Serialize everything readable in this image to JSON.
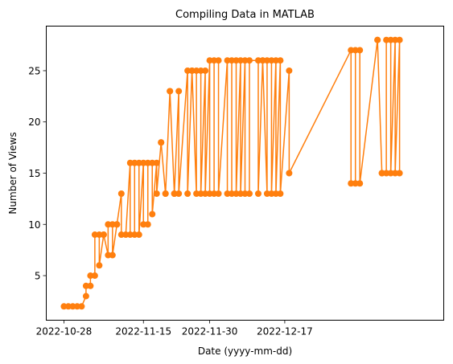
{
  "chart_data": {
    "type": "line",
    "title": "Compiling Data in MATLAB",
    "xlabel": "Date (yyyy-mm-dd)",
    "ylabel": "Number of Views",
    "xlim": [
      "2022-10-24",
      "2023-01-22"
    ],
    "ylim": [
      0.65,
      29.35
    ],
    "grid": false,
    "x_ticks": [
      {
        "date": "2022-10-28",
        "label": "2022-10-28"
      },
      {
        "date": "2022-11-15",
        "label": "2022-11-15"
      },
      {
        "date": "2022-11-30",
        "label": "2022-11-30"
      },
      {
        "date": "2022-12-17",
        "label": "2022-12-17"
      }
    ],
    "y_ticks": [
      5,
      10,
      15,
      20,
      25
    ],
    "colors": {
      "line": "#ff7f0e",
      "marker": "#ff7f0e",
      "axes": "#000000"
    },
    "series": [
      {
        "x": [
          "2022-10-28",
          "2022-10-29",
          "2022-10-30",
          "2022-10-31",
          "2022-11-01",
          "2022-11-02",
          "2022-11-02",
          "2022-11-03",
          "2022-11-03",
          "2022-11-04",
          "2022-11-04",
          "2022-11-05",
          "2022-11-05",
          "2022-11-06",
          "2022-11-06",
          "2022-11-07",
          "2022-11-07",
          "2022-11-08",
          "2022-11-08",
          "2022-11-09",
          "2022-11-09",
          "2022-11-10",
          "2022-11-10",
          "2022-11-11",
          "2022-11-12",
          "2022-11-12",
          "2022-11-13",
          "2022-11-13",
          "2022-11-14",
          "2022-11-14",
          "2022-11-15",
          "2022-11-15",
          "2022-11-16",
          "2022-11-16",
          "2022-11-17",
          "2022-11-17",
          "2022-11-18",
          "2022-11-18",
          "2022-11-19",
          "2022-11-19",
          "2022-11-20",
          "2022-11-20",
          "2022-11-21",
          "2022-11-21",
          "2022-11-22",
          "2022-11-22",
          "2022-11-23",
          "2022-11-23",
          "2022-11-25",
          "2022-11-25",
          "2022-11-26",
          "2022-11-26",
          "2022-11-27",
          "2022-11-27",
          "2022-11-28",
          "2022-11-28",
          "2022-11-29",
          "2022-11-29",
          "2022-11-30",
          "2022-11-30",
          "2022-12-01",
          "2022-12-01",
          "2022-12-02",
          "2022-12-02",
          "2022-12-04",
          "2022-12-04",
          "2022-12-05",
          "2022-12-05",
          "2022-12-06",
          "2022-12-06",
          "2022-12-07",
          "2022-12-07",
          "2022-12-08",
          "2022-12-08",
          "2022-12-09",
          "2022-12-09",
          "2022-12-11",
          "2022-12-11",
          "2022-12-12",
          "2022-12-12",
          "2022-12-13",
          "2022-12-13",
          "2022-12-14",
          "2022-12-14",
          "2022-12-15",
          "2022-12-15",
          "2022-12-16",
          "2022-12-16",
          "2022-12-18",
          "2022-12-18",
          "2023-01-01",
          "2023-01-01",
          "2023-01-02",
          "2023-01-02",
          "2023-01-03",
          "2023-01-03",
          "2023-01-07",
          "2023-01-07",
          "2023-01-08",
          "2023-01-08",
          "2023-01-09",
          "2023-01-09",
          "2023-01-10",
          "2023-01-10",
          "2023-01-11",
          "2023-01-11",
          "2023-01-12",
          "2023-01-12"
        ],
        "y": [
          2,
          2,
          2,
          2,
          2,
          3,
          4,
          4,
          5,
          5,
          9,
          9,
          6,
          9,
          9,
          7,
          10,
          10,
          7,
          10,
          10,
          13,
          9,
          9,
          16,
          9,
          9,
          16,
          16,
          9,
          16,
          10,
          10,
          16,
          16,
          11,
          16,
          13,
          18,
          18,
          13,
          13,
          23,
          23,
          13,
          13,
          23,
          13,
          25,
          13,
          25,
          25,
          13,
          25,
          25,
          13,
          25,
          13,
          26,
          13,
          13,
          26,
          26,
          13,
          26,
          13,
          13,
          26,
          26,
          13,
          26,
          13,
          26,
          13,
          13,
          26,
          26,
          13,
          26,
          26,
          13,
          26,
          26,
          13,
          26,
          13,
          26,
          13,
          25,
          15,
          27,
          14,
          14,
          27,
          27,
          14,
          28,
          28,
          15,
          15,
          15,
          28,
          28,
          15,
          28,
          15,
          28,
          15
        ]
      }
    ]
  }
}
